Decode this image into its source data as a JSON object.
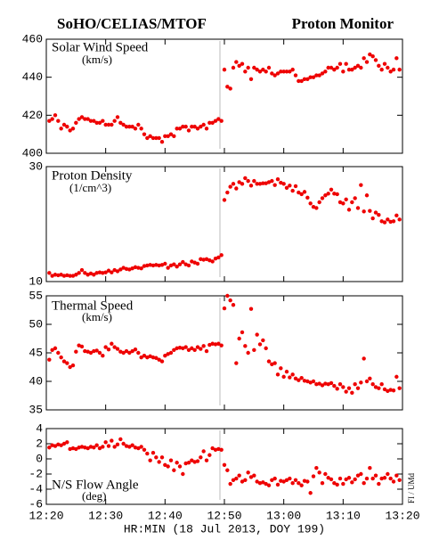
{
  "header": {
    "left": "SoHO/CELIAS/MTOF",
    "right": "Proton Monitor"
  },
  "x_axis": {
    "label": "HR:MIN (18 Jul 2013, DOY 199)",
    "xlim": [
      0,
      60
    ],
    "xticks": [
      {
        "value": 0,
        "label": "12:20"
      },
      {
        "value": 10,
        "label": "12:30"
      },
      {
        "value": 20,
        "label": "12:40"
      },
      {
        "value": 30,
        "label": "12:50"
      },
      {
        "value": 40,
        "label": "13:00"
      },
      {
        "value": 50,
        "label": "13:10"
      },
      {
        "value": 60,
        "label": "13:20"
      }
    ]
  },
  "credit": "FI / UMd",
  "chart_data": [
    {
      "type": "scatter",
      "title": "Solar Wind Speed",
      "subtitle": "(km/s)",
      "color": "#ee0000",
      "ylim": [
        400,
        460
      ],
      "yticks": [
        400,
        420,
        440,
        460
      ],
      "x": [
        0.5,
        1,
        1.5,
        2,
        2.5,
        3,
        3.5,
        4,
        4.5,
        5,
        5.5,
        6,
        6.5,
        7,
        7.5,
        8,
        8.5,
        9,
        9.5,
        10,
        10.5,
        11,
        11.5,
        12,
        12.5,
        13,
        13.5,
        14,
        14.5,
        15,
        15.5,
        16,
        16.5,
        17,
        17.5,
        18,
        18.5,
        19,
        19.5,
        20,
        20.5,
        21,
        21.5,
        22,
        22.5,
        23,
        23.5,
        24,
        24.5,
        25,
        25.5,
        26,
        26.5,
        27,
        27.5,
        28,
        28.5,
        29,
        29.5,
        30,
        30.5,
        31,
        31.5,
        32,
        32.5,
        33,
        33.5,
        34,
        34.5,
        35,
        35.5,
        36,
        36.5,
        37,
        37.5,
        38,
        38.5,
        39,
        39.5,
        40,
        40.5,
        41,
        41.5,
        42,
        42.5,
        43,
        43.5,
        44,
        44.5,
        45,
        45.5,
        46,
        46.5,
        47,
        47.5,
        48,
        48.5,
        49,
        49.5,
        50,
        50.5,
        51,
        51.5,
        52,
        52.5,
        53,
        53.5,
        54,
        54.5,
        55,
        55.5,
        56,
        56.5,
        57,
        57.5,
        58,
        58.5,
        59,
        59.5
      ],
      "values": [
        417,
        418,
        420,
        417,
        413,
        415,
        414,
        412,
        413,
        416,
        418,
        419,
        418,
        418,
        417,
        417,
        416,
        416,
        417,
        415,
        415,
        415,
        417,
        419,
        416,
        415,
        414,
        414,
        414,
        413,
        415,
        413,
        410,
        408,
        409,
        408,
        408,
        408,
        406,
        409,
        409,
        410,
        409,
        413,
        413,
        414,
        414,
        412,
        414,
        414,
        413,
        414,
        415,
        413,
        416,
        416,
        417,
        418,
        417,
        444,
        435,
        434,
        445,
        448,
        446,
        447,
        443,
        445,
        439,
        445,
        444,
        443,
        444,
        443,
        445,
        442,
        441,
        442,
        443,
        443,
        443,
        443,
        444,
        441,
        438,
        438,
        439,
        439,
        440,
        440,
        441,
        441,
        442,
        443,
        445,
        445,
        444,
        445,
        447,
        443,
        447,
        444,
        444,
        445,
        446,
        445,
        450,
        448,
        452,
        451,
        449,
        446,
        444,
        447,
        445,
        443,
        444,
        450,
        444
      ]
    },
    {
      "type": "scatter",
      "title": "Proton Density",
      "subtitle": "(1/cm^3)",
      "color": "#ee0000",
      "ylim": [
        10,
        30
      ],
      "yticks": [
        10,
        30
      ],
      "x": [
        0.5,
        1,
        1.5,
        2,
        2.5,
        3,
        3.5,
        4,
        4.5,
        5,
        5.5,
        6,
        6.5,
        7,
        7.5,
        8,
        8.5,
        9,
        9.5,
        10,
        10.5,
        11,
        11.5,
        12,
        12.5,
        13,
        13.5,
        14,
        14.5,
        15,
        15.5,
        16,
        16.5,
        17,
        17.5,
        18,
        18.5,
        19,
        19.5,
        20,
        20.5,
        21,
        21.5,
        22,
        22.5,
        23,
        23.5,
        24,
        24.5,
        25,
        25.5,
        26,
        26.5,
        27,
        27.5,
        28,
        28.5,
        29,
        29.5,
        30,
        30.5,
        31,
        31.5,
        32,
        32.5,
        33,
        33.5,
        34,
        34.5,
        35,
        35.5,
        36,
        36.5,
        37,
        37.5,
        38,
        38.5,
        39,
        39.5,
        40,
        40.5,
        41,
        41.5,
        42,
        42.5,
        43,
        43.5,
        44,
        44.5,
        45,
        45.5,
        46,
        46.5,
        47,
        47.5,
        48,
        48.5,
        49,
        49.5,
        50,
        50.5,
        51,
        51.5,
        52,
        52.5,
        53,
        53.5,
        54,
        54.5,
        55,
        55.5,
        56,
        56.5,
        57,
        57.5,
        58,
        58.5,
        59,
        59.5
      ],
      "values": [
        11.5,
        11,
        11.2,
        11.1,
        11.2,
        11,
        11.1,
        11,
        11,
        11.2,
        11.5,
        12,
        11.5,
        11.2,
        11.4,
        11.2,
        11.5,
        11.6,
        11.5,
        11.6,
        11.9,
        11.6,
        12,
        11.8,
        12.1,
        12.4,
        12.2,
        12.1,
        12.3,
        12.5,
        12.4,
        12.3,
        12.7,
        12.8,
        12.9,
        12.8,
        12.9,
        12.8,
        12.9,
        13.1,
        12.4,
        12.8,
        13,
        12.6,
        13,
        13.4,
        13,
        12.8,
        13.5,
        13.3,
        13.1,
        13.9,
        13.8,
        13.9,
        13.7,
        13.5,
        14,
        14.2,
        14.6,
        24.2,
        25.5,
        26.5,
        27,
        26.2,
        27.3,
        27,
        28,
        27.5,
        26.7,
        27.5,
        27,
        27,
        27.1,
        27.1,
        27.3,
        27.5,
        26.8,
        27.8,
        27.2,
        27,
        26.3,
        26.7,
        25.8,
        26.6,
        25.5,
        25.2,
        25.6,
        24.6,
        23.6,
        23,
        22.8,
        23.8,
        24.5,
        25,
        25.3,
        26,
        25.3,
        25.2,
        23.8,
        23.6,
        24.3,
        22.5,
        23.8,
        24.5,
        22.8,
        26.8,
        22.2,
        25,
        22.3,
        21,
        22,
        21.6,
        20.5,
        20.3,
        20.8,
        20.4,
        20.5,
        21.5,
        20.8
      ]
    },
    {
      "type": "scatter",
      "title": "Thermal Speed",
      "subtitle": "(km/s)",
      "color": "#ee0000",
      "ylim": [
        35,
        55
      ],
      "yticks": [
        35,
        40,
        45,
        50,
        55
      ],
      "x": [
        0.5,
        1,
        1.5,
        2,
        2.5,
        3,
        3.5,
        4,
        4.5,
        5,
        5.5,
        6,
        6.5,
        7,
        7.5,
        8,
        8.5,
        9,
        9.5,
        10,
        10.5,
        11,
        11.5,
        12,
        12.5,
        13,
        13.5,
        14,
        14.5,
        15,
        15.5,
        16,
        16.5,
        17,
        17.5,
        18,
        18.5,
        19,
        19.5,
        20,
        20.5,
        21,
        21.5,
        22,
        22.5,
        23,
        23.5,
        24,
        24.5,
        25,
        25.5,
        26,
        26.5,
        27,
        27.5,
        28,
        28.5,
        29,
        29.5,
        30,
        30.5,
        31,
        31.5,
        32,
        32.5,
        33,
        33.5,
        34,
        34.5,
        35,
        35.5,
        36,
        36.5,
        37,
        37.5,
        38,
        38.5,
        39,
        39.5,
        40,
        40.5,
        41,
        41.5,
        42,
        42.5,
        43,
        43.5,
        44,
        44.5,
        45,
        45.5,
        46,
        46.5,
        47,
        47.5,
        48,
        48.5,
        49,
        49.5,
        50,
        50.5,
        51,
        51.5,
        52,
        52.5,
        53,
        53.5,
        54,
        54.5,
        55,
        55.5,
        56,
        56.5,
        57,
        57.5,
        58,
        58.5,
        59,
        59.5
      ],
      "values": [
        43.8,
        45.5,
        45.8,
        45,
        44.2,
        43.5,
        43.2,
        42.5,
        42.8,
        45.2,
        46.3,
        46.1,
        45.3,
        45.2,
        45,
        45.3,
        45.4,
        45,
        44.5,
        46,
        45.6,
        46.6,
        46,
        45.7,
        45.2,
        45,
        45.3,
        45,
        45.3,
        45.6,
        45,
        44.2,
        44.5,
        44.2,
        44.4,
        44.2,
        44.1,
        43.8,
        43.5,
        44.5,
        44.8,
        45,
        45.5,
        45.8,
        45.9,
        45.8,
        46,
        45.5,
        45.8,
        45.5,
        46,
        45.7,
        46.2,
        45.3,
        46.4,
        46.6,
        46.5,
        46.6,
        46.3,
        52.8,
        55,
        54.2,
        53.4,
        43.2,
        47.5,
        48.6,
        46.2,
        45,
        52.7,
        45.5,
        48.2,
        46.5,
        47.2,
        45.8,
        43.5,
        43,
        43.2,
        41.2,
        42.3,
        40.8,
        41.7,
        40.7,
        41.2,
        40.5,
        40.2,
        40.6,
        40.1,
        40,
        39.8,
        40,
        39.5,
        39.6,
        39.3,
        39.6,
        39.5,
        39.7,
        39.2,
        38.7,
        39.5,
        39,
        38.2,
        38.8,
        38,
        39.5,
        38.8,
        39.8,
        44,
        40,
        40.5,
        39.5,
        39,
        38.8,
        39.5,
        38.6,
        38.3,
        38.5,
        38.4,
        40.8,
        38.8
      ]
    },
    {
      "type": "scatter",
      "title": "N/S Flow Angle",
      "subtitle": "(deg)",
      "color": "#ee0000",
      "ylim": [
        -6,
        4
      ],
      "yticks": [
        -6,
        -4,
        -2,
        0,
        2,
        4
      ],
      "x": [
        0.5,
        1,
        1.5,
        2,
        2.5,
        3,
        3.5,
        4,
        4.5,
        5,
        5.5,
        6,
        6.5,
        7,
        7.5,
        8,
        8.5,
        9,
        9.5,
        10,
        10.5,
        11,
        11.5,
        12,
        12.5,
        13,
        13.5,
        14,
        14.5,
        15,
        15.5,
        16,
        16.5,
        17,
        17.5,
        18,
        18.5,
        19,
        19.5,
        20,
        20.5,
        21,
        21.5,
        22,
        22.5,
        23,
        23.5,
        24,
        24.5,
        25,
        25.5,
        26,
        26.5,
        27,
        27.5,
        28,
        28.5,
        29,
        29.5,
        30,
        30.5,
        31,
        31.5,
        32,
        32.5,
        33,
        33.5,
        34,
        34.5,
        35,
        35.5,
        36,
        36.5,
        37,
        37.5,
        38,
        38.5,
        39,
        39.5,
        40,
        40.5,
        41,
        41.5,
        42,
        42.5,
        43,
        43.5,
        44,
        44.5,
        45,
        45.5,
        46,
        46.5,
        47,
        47.5,
        48,
        48.5,
        49,
        49.5,
        50,
        50.5,
        51,
        51.5,
        52,
        52.5,
        53,
        53.5,
        54,
        54.5,
        55,
        55.5,
        56,
        56.5,
        57,
        57.5,
        58,
        58.5,
        59,
        59.5
      ],
      "values": [
        1.5,
        1.8,
        1.7,
        1.9,
        1.8,
        2,
        2.2,
        1.3,
        1.4,
        1.3,
        1.5,
        1.6,
        1.5,
        1.4,
        1.6,
        1.5,
        1.8,
        1.4,
        1.6,
        2.2,
        1.7,
        2.4,
        1.6,
        1.9,
        2.6,
        2,
        1.7,
        1.6,
        1.8,
        1.5,
        1.4,
        1.6,
        1.2,
        0.7,
        -0.2,
        0.8,
        0.2,
        -0.4,
        0.2,
        -0.8,
        -1,
        -0.2,
        -1.5,
        -0.5,
        -1,
        -2,
        -0.6,
        -0.5,
        -0.2,
        -0.4,
        -0.3,
        0.2,
        1,
        -0.2,
        0.5,
        1.4,
        1.2,
        1.3,
        1.2,
        -0.8,
        -1.5,
        -3.3,
        -2.8,
        -2.6,
        -2.2,
        -3,
        -2.8,
        -1.8,
        -2.4,
        -2.2,
        -3,
        -3.2,
        -3.1,
        -3.3,
        -3.5,
        -2.8,
        -2.6,
        -3.4,
        -2.9,
        -3,
        -2.8,
        -2.6,
        -3.2,
        -2.8,
        -3.2,
        -3.5,
        -2.9,
        -3,
        -4.5,
        -2.3,
        -1.2,
        -1.8,
        -3.2,
        -2,
        -2.5,
        -2.7,
        -3.2,
        -3.4,
        -2.6,
        -3.3,
        -2.7,
        -2.5,
        -3.1,
        -2.7,
        -2.2,
        -2,
        -3.2,
        -2.6,
        -1.2,
        -2.6,
        -2.2,
        -3.3,
        -2.6,
        -2.5,
        -2,
        -2.6,
        -3,
        -2.2,
        -2.8
      ]
    }
  ]
}
